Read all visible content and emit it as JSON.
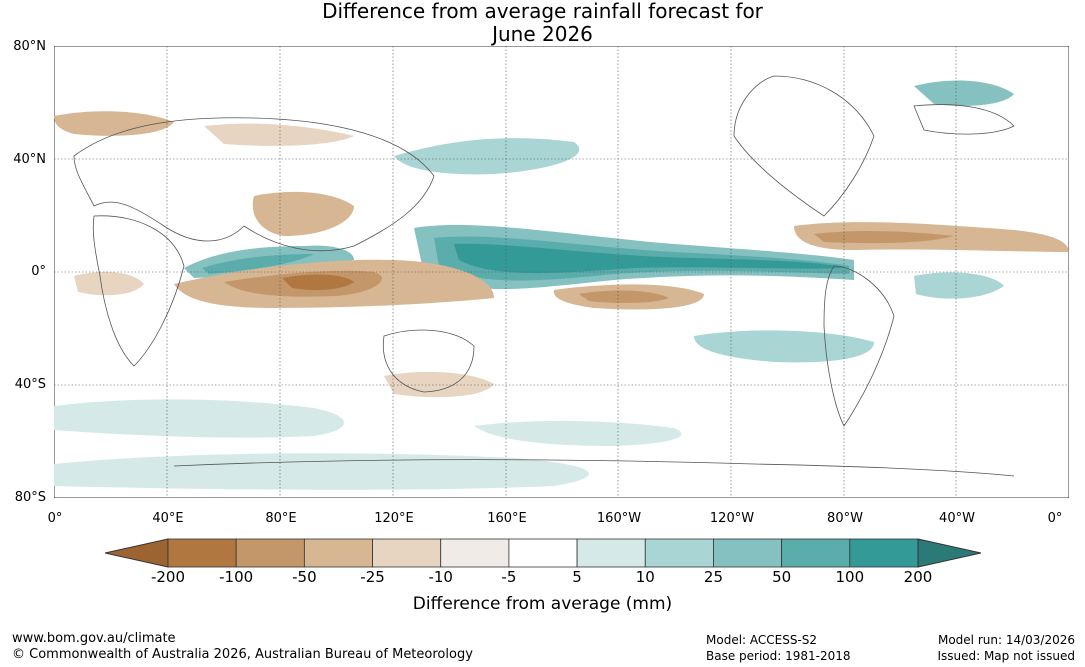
{
  "title": {
    "line1": "Difference from average rainfall forecast for",
    "line2": "June 2026"
  },
  "map": {
    "lat_labels": [
      "80°N",
      "40°N",
      "0°",
      "40°S",
      "80°S"
    ],
    "lon_labels": [
      "0°",
      "40°E",
      "80°E",
      "120°E",
      "160°E",
      "160°W",
      "120°W",
      "80°W",
      "40°W",
      "0°"
    ]
  },
  "colorbar": {
    "ticks": [
      "-200",
      "-100",
      "-50",
      "-25",
      "-10",
      "-5",
      "5",
      "10",
      "25",
      "50",
      "100",
      "200"
    ],
    "colors": [
      "#9c6430",
      "#b07840",
      "#c4976a",
      "#d6b693",
      "#e7d4c1",
      "#f0ebe6",
      "#ffffff",
      "#d5e9e8",
      "#a9d5d4",
      "#84c1c0",
      "#5aadab",
      "#349a98",
      "#2b7a78"
    ],
    "label": "Difference from average (mm)"
  },
  "footer": {
    "website": "www.bom.gov.au/climate",
    "copyright": "© Commonwealth of Australia 2026, Australian Bureau of Meteorology",
    "model": "Model: ACCESS-S2",
    "base_period": "Base period: 1981-2018",
    "model_run": "Model run: 14/03/2026",
    "issued": "Issued: Map not issued"
  }
}
